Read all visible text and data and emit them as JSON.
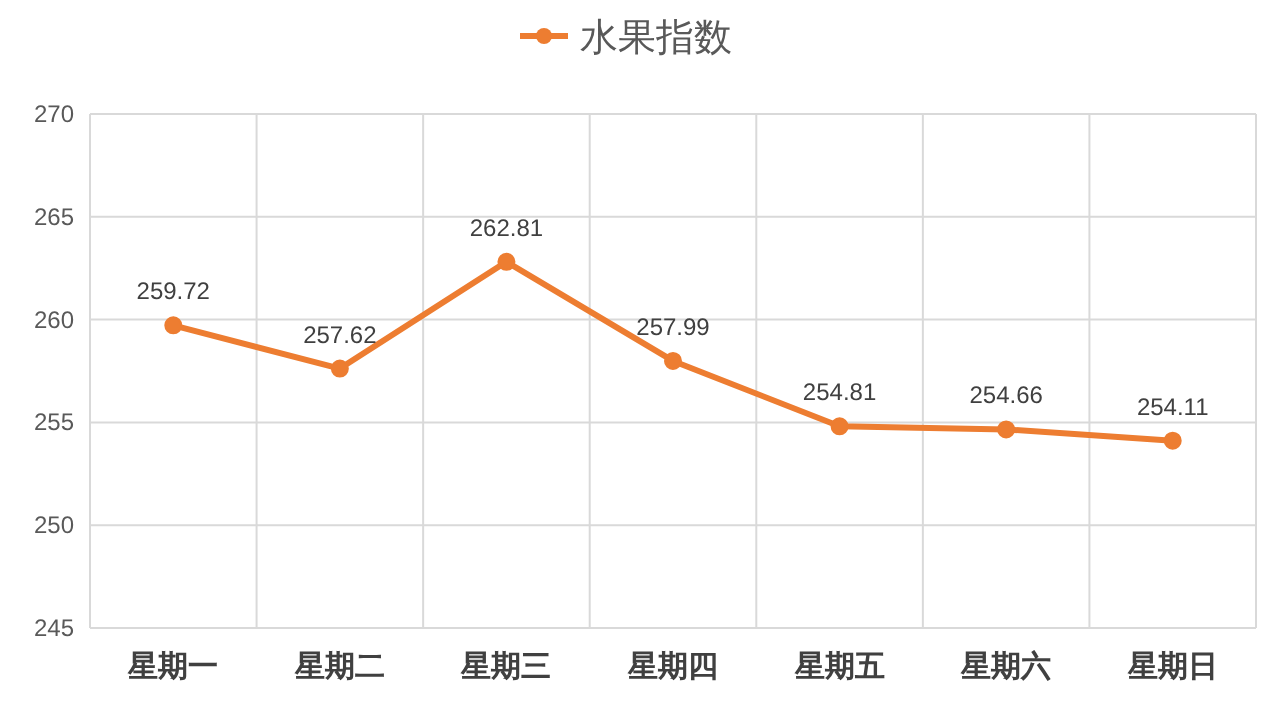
{
  "chart_data": {
    "type": "line",
    "categories": [
      "星期一",
      "星期二",
      "星期三",
      "星期四",
      "星期五",
      "星期六",
      "星期日"
    ],
    "series": [
      {
        "name": "水果指数",
        "color": "#ed7d31",
        "values": [
          259.72,
          257.62,
          262.81,
          257.99,
          254.81,
          254.66,
          254.11
        ]
      }
    ],
    "ylim": [
      245,
      270
    ],
    "yticks": [
      245,
      250,
      255,
      260,
      265,
      270
    ],
    "grid": true,
    "legend": "top",
    "marker": "circle",
    "line_style": "solid",
    "data_labels": true
  }
}
